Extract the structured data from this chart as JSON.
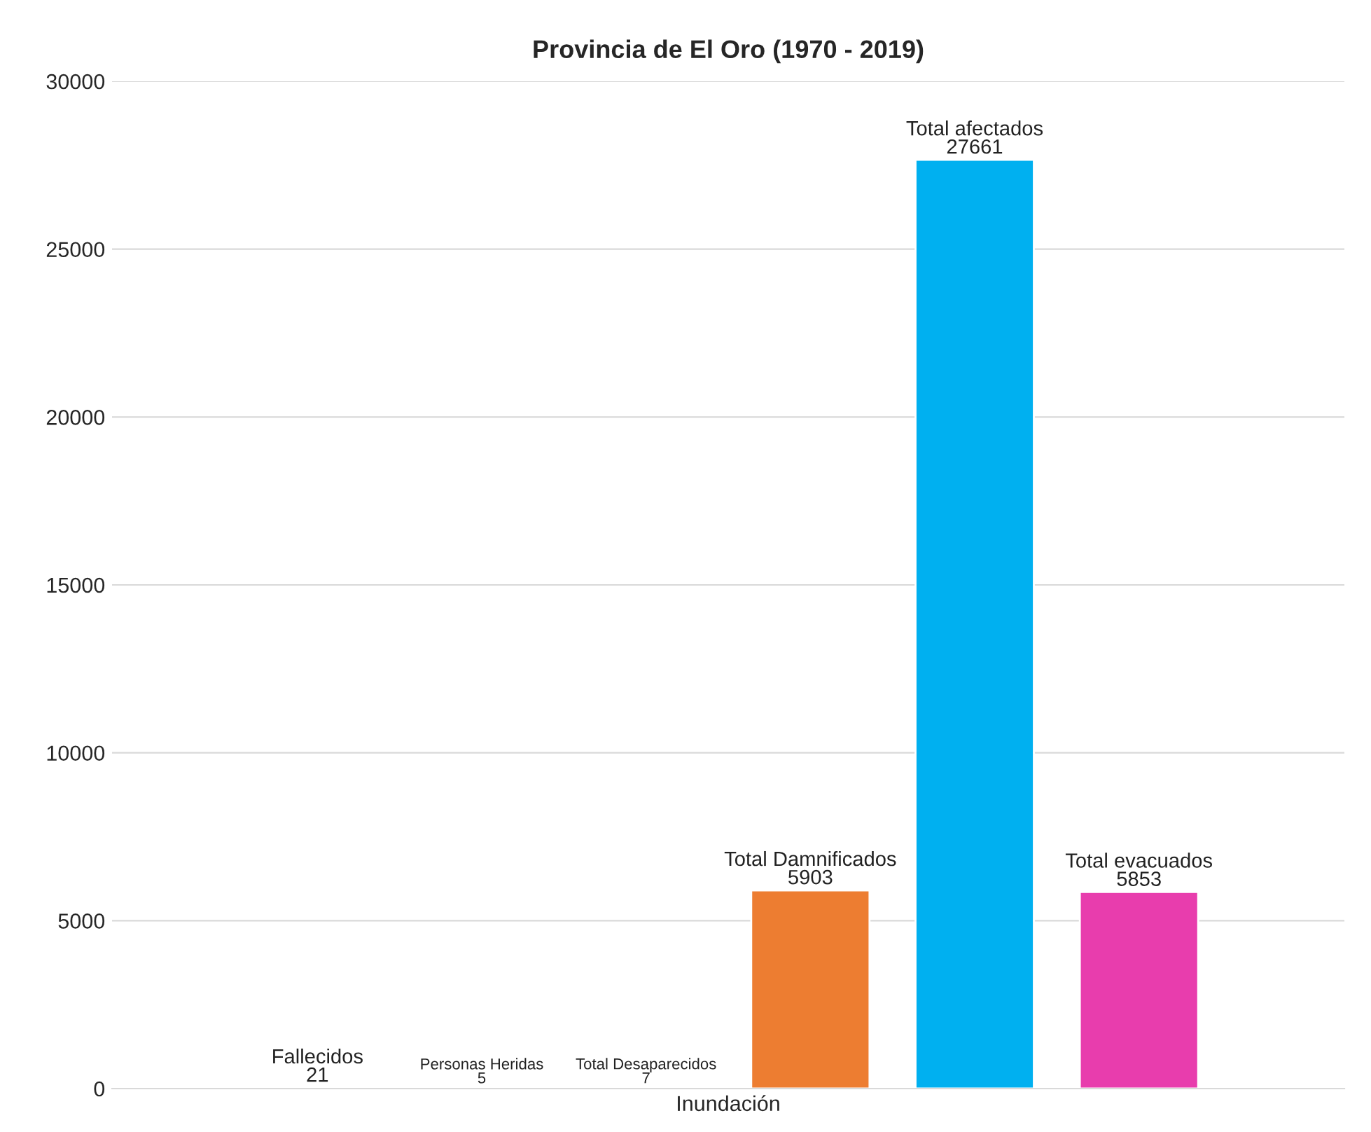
{
  "chart_data": {
    "type": "bar",
    "title": "Provincia de El Oro (1970 - 2019)",
    "categories": [
      "Inundación"
    ],
    "series": [
      {
        "name": "Fallecidos",
        "color": "#4472c4",
        "values": [
          21
        ]
      },
      {
        "name": "Personas Heridas",
        "color": "#a5a5a5",
        "values": [
          5
        ]
      },
      {
        "name": "Total Desaparecidos",
        "color": "#ffc000",
        "values": [
          7
        ]
      },
      {
        "name": "Total Damnificados",
        "color": "#ed7d31",
        "values": [
          5903
        ]
      },
      {
        "name": "Total afectados",
        "color": "#00b0f0",
        "values": [
          27661
        ]
      },
      {
        "name": "Total evacuados",
        "color": "#e83dad",
        "values": [
          5853
        ]
      }
    ],
    "ylim": [
      0,
      30000
    ],
    "yticks": [
      0,
      5000,
      10000,
      15000,
      20000,
      25000,
      30000
    ],
    "grid": "y",
    "data_labels": true,
    "legend": false
  }
}
